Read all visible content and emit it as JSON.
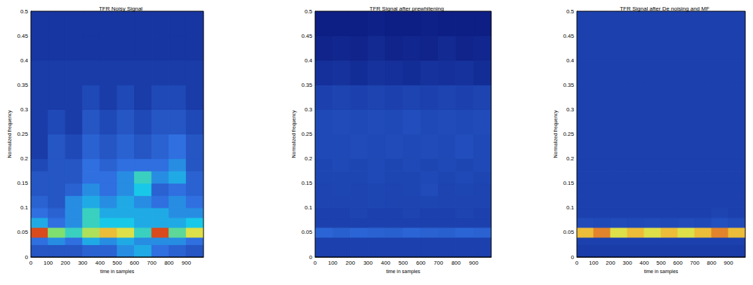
{
  "chart_data": [
    {
      "type": "heatmap",
      "title": "TFR Noisy Signal",
      "x_label": "time in samples",
      "y_label": "Normalized frequency",
      "xlim": [
        0,
        1000
      ],
      "xticks": [
        0,
        100,
        200,
        300,
        400,
        500,
        600,
        700,
        800,
        900
      ],
      "ylim": [
        0,
        0.5
      ],
      "yticks": [
        0,
        0.05,
        0.1,
        0.15,
        0.2,
        0.25,
        0.3,
        0.35,
        0.4,
        0.45,
        0.5
      ],
      "zlim": [
        0,
        1
      ],
      "x_edges": [
        0,
        100,
        200,
        300,
        400,
        500,
        600,
        700,
        800,
        900,
        1000
      ],
      "y_edges": [
        0,
        0.025,
        0.04,
        0.06,
        0.08,
        0.1,
        0.125,
        0.15,
        0.175,
        0.2,
        0.25,
        0.3,
        0.35,
        0.4,
        0.45,
        0.5
      ],
      "cells": [
        [
          0.3,
          0.3,
          0.3,
          0.35,
          0.35,
          0.45,
          0.5,
          0.4,
          0.35,
          0.3
        ],
        [
          0.4,
          0.45,
          0.4,
          0.5,
          0.45,
          0.5,
          0.45,
          0.45,
          0.45,
          0.4
        ],
        [
          0.95,
          0.7,
          0.6,
          0.75,
          0.85,
          0.8,
          0.6,
          0.95,
          0.65,
          0.8
        ],
        [
          0.5,
          0.4,
          0.45,
          0.6,
          0.55,
          0.55,
          0.5,
          0.5,
          0.5,
          0.55
        ],
        [
          0.4,
          0.35,
          0.45,
          0.6,
          0.5,
          0.5,
          0.5,
          0.5,
          0.45,
          0.45
        ],
        [
          0.35,
          0.3,
          0.45,
          0.5,
          0.45,
          0.5,
          0.45,
          0.4,
          0.45,
          0.4
        ],
        [
          0.3,
          0.3,
          0.35,
          0.45,
          0.4,
          0.45,
          0.55,
          0.35,
          0.4,
          0.35
        ],
        [
          0.3,
          0.3,
          0.3,
          0.4,
          0.4,
          0.45,
          0.6,
          0.45,
          0.5,
          0.35
        ],
        [
          0.25,
          0.3,
          0.3,
          0.4,
          0.35,
          0.4,
          0.4,
          0.4,
          0.45,
          0.3
        ],
        [
          0.2,
          0.3,
          0.25,
          0.35,
          0.3,
          0.35,
          0.3,
          0.35,
          0.4,
          0.3
        ],
        [
          0.2,
          0.25,
          0.2,
          0.3,
          0.25,
          0.3,
          0.25,
          0.3,
          0.3,
          0.25
        ],
        [
          0.2,
          0.2,
          0.2,
          0.25,
          0.2,
          0.25,
          0.2,
          0.25,
          0.25,
          0.2
        ],
        [
          0.2,
          0.2,
          0.2,
          0.2,
          0.2,
          0.2,
          0.2,
          0.2,
          0.2,
          0.2
        ],
        [
          0.18,
          0.18,
          0.18,
          0.18,
          0.18,
          0.18,
          0.18,
          0.18,
          0.18,
          0.18
        ],
        [
          0.18,
          0.18,
          0.18,
          0.18,
          0.18,
          0.18,
          0.18,
          0.18,
          0.18,
          0.18
        ]
      ]
    },
    {
      "type": "heatmap",
      "title": "TFR Signal after prewhitening",
      "x_label": "time in samples",
      "y_label": "Normalized frequency",
      "xlim": [
        0,
        1000
      ],
      "xticks": [
        0,
        100,
        200,
        300,
        400,
        500,
        600,
        700,
        800,
        900
      ],
      "ylim": [
        0,
        0.5
      ],
      "yticks": [
        0,
        0.05,
        0.1,
        0.15,
        0.2,
        0.25,
        0.3,
        0.35,
        0.4,
        0.45,
        0.5
      ],
      "zlim": [
        0,
        1
      ],
      "x_edges": [
        0,
        100,
        200,
        300,
        400,
        500,
        600,
        700,
        800,
        900,
        1000
      ],
      "y_edges": [
        0,
        0.025,
        0.04,
        0.06,
        0.08,
        0.1,
        0.125,
        0.15,
        0.175,
        0.2,
        0.25,
        0.3,
        0.35,
        0.4,
        0.45,
        0.5
      ],
      "cells": [
        [
          0.22,
          0.22,
          0.22,
          0.22,
          0.22,
          0.22,
          0.22,
          0.22,
          0.22,
          0.22
        ],
        [
          0.22,
          0.22,
          0.22,
          0.22,
          0.22,
          0.22,
          0.22,
          0.22,
          0.22,
          0.22
        ],
        [
          0.36,
          0.34,
          0.36,
          0.35,
          0.34,
          0.36,
          0.35,
          0.34,
          0.36,
          0.35
        ],
        [
          0.22,
          0.22,
          0.22,
          0.22,
          0.22,
          0.22,
          0.22,
          0.22,
          0.22,
          0.22
        ],
        [
          0.22,
          0.22,
          0.23,
          0.22,
          0.22,
          0.23,
          0.22,
          0.22,
          0.23,
          0.22
        ],
        [
          0.23,
          0.23,
          0.23,
          0.24,
          0.23,
          0.23,
          0.24,
          0.23,
          0.23,
          0.23
        ],
        [
          0.23,
          0.24,
          0.23,
          0.24,
          0.23,
          0.24,
          0.26,
          0.23,
          0.24,
          0.23
        ],
        [
          0.24,
          0.24,
          0.24,
          0.25,
          0.24,
          0.24,
          0.25,
          0.24,
          0.25,
          0.24
        ],
        [
          0.24,
          0.25,
          0.24,
          0.25,
          0.24,
          0.25,
          0.24,
          0.25,
          0.24,
          0.25
        ],
        [
          0.25,
          0.25,
          0.26,
          0.25,
          0.26,
          0.25,
          0.26,
          0.25,
          0.27,
          0.25
        ],
        [
          0.25,
          0.26,
          0.25,
          0.26,
          0.25,
          0.27,
          0.25,
          0.26,
          0.25,
          0.26
        ],
        [
          0.22,
          0.23,
          0.22,
          0.23,
          0.22,
          0.23,
          0.22,
          0.23,
          0.22,
          0.23
        ],
        [
          0.16,
          0.17,
          0.15,
          0.17,
          0.16,
          0.15,
          0.17,
          0.16,
          0.17,
          0.15
        ],
        [
          0.12,
          0.13,
          0.12,
          0.14,
          0.12,
          0.13,
          0.12,
          0.14,
          0.12,
          0.13
        ],
        [
          0.1,
          0.1,
          0.1,
          0.11,
          0.1,
          0.1,
          0.11,
          0.1,
          0.1,
          0.1
        ]
      ]
    },
    {
      "type": "heatmap",
      "title": "TFR Signal after De noising and MF",
      "x_label": "time in samples",
      "y_label": "Normalized frequency",
      "xlim": [
        0,
        1000
      ],
      "xticks": [
        0,
        100,
        200,
        300,
        400,
        500,
        600,
        700,
        800,
        900
      ],
      "ylim": [
        0,
        0.5
      ],
      "yticks": [
        0,
        0.05,
        0.1,
        0.15,
        0.2,
        0.25,
        0.3,
        0.35,
        0.4,
        0.45,
        0.5
      ],
      "zlim": [
        0,
        1
      ],
      "x_edges": [
        0,
        100,
        200,
        300,
        400,
        500,
        600,
        700,
        800,
        900,
        1000
      ],
      "y_edges": [
        0,
        0.025,
        0.04,
        0.06,
        0.08,
        0.1,
        0.125,
        0.15,
        0.175,
        0.2,
        0.25,
        0.3,
        0.35,
        0.4,
        0.45,
        0.5
      ],
      "cells": [
        [
          0.2,
          0.2,
          0.2,
          0.2,
          0.2,
          0.2,
          0.2,
          0.2,
          0.2,
          0.2
        ],
        [
          0.22,
          0.22,
          0.22,
          0.22,
          0.22,
          0.22,
          0.22,
          0.22,
          0.22,
          0.22
        ],
        [
          0.85,
          0.9,
          0.8,
          0.85,
          0.8,
          0.85,
          0.8,
          0.85,
          0.9,
          0.85
        ],
        [
          0.26,
          0.25,
          0.26,
          0.25,
          0.26,
          0.25,
          0.26,
          0.25,
          0.28,
          0.26
        ],
        [
          0.22,
          0.22,
          0.22,
          0.22,
          0.22,
          0.22,
          0.22,
          0.22,
          0.23,
          0.22
        ],
        [
          0.22,
          0.22,
          0.22,
          0.22,
          0.22,
          0.22,
          0.22,
          0.22,
          0.22,
          0.22
        ],
        [
          0.22,
          0.22,
          0.22,
          0.22,
          0.22,
          0.22,
          0.22,
          0.22,
          0.22,
          0.22
        ],
        [
          0.22,
          0.22,
          0.22,
          0.22,
          0.22,
          0.22,
          0.22,
          0.22,
          0.22,
          0.22
        ],
        [
          0.22,
          0.22,
          0.22,
          0.22,
          0.22,
          0.22,
          0.22,
          0.22,
          0.22,
          0.22
        ],
        [
          0.22,
          0.22,
          0.22,
          0.22,
          0.22,
          0.22,
          0.22,
          0.22,
          0.22,
          0.22
        ],
        [
          0.22,
          0.22,
          0.22,
          0.22,
          0.22,
          0.22,
          0.22,
          0.22,
          0.22,
          0.22
        ],
        [
          0.22,
          0.22,
          0.22,
          0.22,
          0.22,
          0.22,
          0.22,
          0.22,
          0.22,
          0.22
        ],
        [
          0.22,
          0.22,
          0.22,
          0.22,
          0.22,
          0.22,
          0.22,
          0.22,
          0.22,
          0.22
        ],
        [
          0.22,
          0.22,
          0.22,
          0.22,
          0.22,
          0.22,
          0.22,
          0.22,
          0.22,
          0.22
        ],
        [
          0.22,
          0.22,
          0.22,
          0.22,
          0.22,
          0.22,
          0.22,
          0.22,
          0.22,
          0.22
        ]
      ]
    }
  ]
}
